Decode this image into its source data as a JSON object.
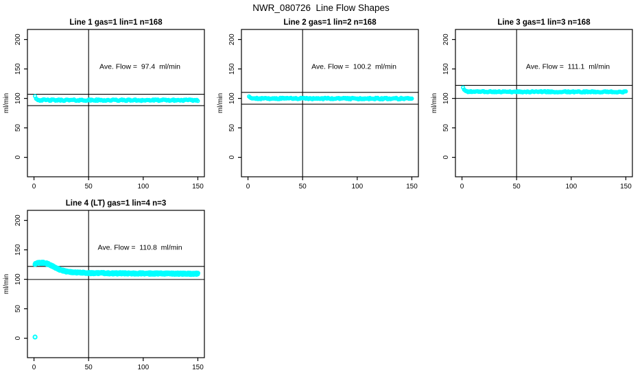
{
  "page": {
    "title": "NWR_080726  Line Flow Shapes",
    "background": "#ffffff",
    "axis_color": "#000000",
    "marker_color": "#00ffff"
  },
  "chart_data": [
    {
      "type": "scatter",
      "title": "Line 1 gas=1 lin=1 n=168",
      "annotation": "Ave. Flow =  97.4  ml/min",
      "ave_flow_ml_min": 97.4,
      "n": 168,
      "ylabel": "ml/min",
      "xlabel": "",
      "x_ticks": [
        0,
        50,
        100,
        150
      ],
      "y_ticks": [
        0,
        50,
        100,
        150,
        200
      ],
      "xlim": [
        -6,
        156
      ],
      "ylim": [
        -33,
        217
      ],
      "grid": "off",
      "legend": "none",
      "vline_x": 50,
      "hlines": [
        107.1,
        87.7
      ],
      "marker": {
        "shape": "open-circle",
        "color": "#00ffff",
        "radius": 2.3,
        "stroke_width": 1.6
      },
      "series": {
        "name": "line1-flow",
        "x_start": 1,
        "x_end": 150,
        "n_drawn": 168,
        "noise": 1.2,
        "profile": [
          [
            1,
            104.5
          ],
          [
            1.9,
            100.5
          ],
          [
            2.8,
            98
          ],
          [
            5,
            97.2
          ],
          [
            20,
            97
          ],
          [
            150,
            96.9
          ]
        ],
        "outliers": []
      }
    },
    {
      "type": "scatter",
      "title": "Line 2 gas=1 lin=2 n=168",
      "annotation": "Ave. Flow =  100.2  ml/min",
      "ave_flow_ml_min": 100.2,
      "n": 168,
      "ylabel": "ml/min",
      "xlabel": "",
      "x_ticks": [
        0,
        50,
        100,
        150
      ],
      "y_ticks": [
        0,
        50,
        100,
        150,
        200
      ],
      "xlim": [
        -6,
        156
      ],
      "ylim": [
        -33,
        217
      ],
      "grid": "off",
      "legend": "none",
      "vline_x": 50,
      "hlines": [
        110.2,
        90.2
      ],
      "marker": {
        "shape": "open-circle",
        "color": "#00ffff",
        "radius": 2.3,
        "stroke_width": 1.6
      },
      "series": {
        "name": "line2-flow",
        "x_start": 1,
        "x_end": 150,
        "n_drawn": 168,
        "noise": 1.2,
        "profile": [
          [
            1,
            103
          ],
          [
            2,
            101
          ],
          [
            4,
            100
          ],
          [
            20,
            99.8
          ],
          [
            150,
            99.7
          ]
        ],
        "outliers": []
      }
    },
    {
      "type": "scatter",
      "title": "Line 3 gas=1 lin=3 n=168",
      "annotation": "Ave. Flow =  111.1  ml/min",
      "ave_flow_ml_min": 111.1,
      "n": 168,
      "ylabel": "ml/min",
      "xlabel": "",
      "x_ticks": [
        0,
        50,
        100,
        150
      ],
      "y_ticks": [
        0,
        50,
        100,
        150,
        200
      ],
      "xlim": [
        -6,
        156
      ],
      "ylim": [
        -33,
        217
      ],
      "grid": "off",
      "legend": "none",
      "vline_x": 50,
      "hlines": [
        122.2,
        100.0
      ],
      "marker": {
        "shape": "open-circle",
        "color": "#00ffff",
        "radius": 2.3,
        "stroke_width": 1.6
      },
      "series": {
        "name": "line3-flow",
        "x_start": 1,
        "x_end": 150,
        "n_drawn": 168,
        "noise": 1.0,
        "profile": [
          [
            1,
            119.5
          ],
          [
            2,
            114.8
          ],
          [
            3.5,
            112.3
          ],
          [
            6,
            111.4
          ],
          [
            150,
            111
          ]
        ],
        "outliers": []
      }
    },
    {
      "type": "scatter",
      "title": "Line 4 (LT) gas=1 lin=4 n=3",
      "annotation": "Ave. Flow =  110.8  ml/min",
      "ave_flow_ml_min": 110.8,
      "n": 3,
      "ylabel": "ml/min",
      "xlabel": "",
      "x_ticks": [
        0,
        50,
        100,
        150
      ],
      "y_ticks": [
        0,
        50,
        100,
        150,
        200
      ],
      "xlim": [
        -6,
        156
      ],
      "ylim": [
        -33,
        217
      ],
      "grid": "off",
      "legend": "none",
      "vline_x": 50,
      "hlines": [
        121.9,
        99.7
      ],
      "marker": {
        "shape": "open-circle",
        "color": "#00ffff",
        "radius": 2.6,
        "stroke_width": 2.0
      },
      "series": {
        "name": "line4-flow",
        "x_start": 1,
        "x_end": 150,
        "n_drawn": 504,
        "noise": 1.3,
        "profile": [
          [
            1,
            125.5
          ],
          [
            4,
            128
          ],
          [
            9,
            128.3
          ],
          [
            14,
            125
          ],
          [
            19,
            120
          ],
          [
            24,
            116
          ],
          [
            29,
            113.5
          ],
          [
            36,
            111.8
          ],
          [
            48,
            110.6
          ],
          [
            80,
            110
          ],
          [
            150,
            109.4
          ]
        ],
        "outliers": [
          [
            1,
            2
          ]
        ]
      }
    }
  ]
}
